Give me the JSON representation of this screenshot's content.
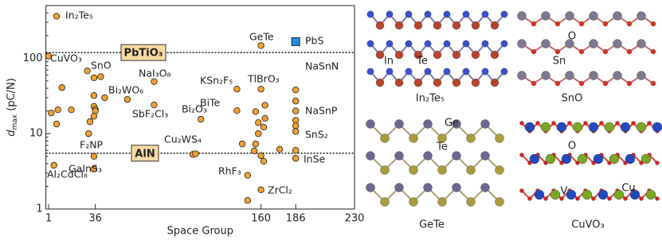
{
  "chart_data": {
    "type": "scatter",
    "xlabel": "Space Group",
    "ylabel": {
      "symbol": "d",
      "subscript": "max",
      "unit": " (pC/N)"
    },
    "xlim": [
      -1,
      230
    ],
    "ylim": [
      1,
      500
    ],
    "log_y": true,
    "xticks": [
      1,
      36,
      160,
      186,
      230
    ],
    "yticks": [
      1,
      10,
      100
    ],
    "series": [
      {
        "color": "#f0a030",
        "marker": "circle",
        "x": [
          7,
          1,
          3,
          8,
          7,
          11,
          18,
          5,
          30,
          35,
          40,
          35,
          35,
          36,
          36,
          35,
          32,
          31,
          35,
          35,
          43,
          60,
          80,
          80,
          115,
          109,
          111,
          142,
          142,
          146,
          150,
          150,
          160,
          160,
          156,
          158,
          158,
          156,
          155,
          160,
          162,
          162,
          163,
          160,
          163,
          174,
          186,
          186,
          186,
          186,
          186,
          186,
          186,
          186
        ],
        "values": [
          361,
          107,
          18.8,
          20.7,
          13.4,
          40.8,
          20.7,
          3.8,
          68,
          55,
          57,
          32,
          23,
          21,
          20,
          17,
          14.4,
          10,
          5,
          3.4,
          30,
          28.4,
          24,
          49,
          15.5,
          5.3,
          5.4,
          38.9,
          20.2,
          7.3,
          2.8,
          1.3,
          147,
          38.9,
          19.6,
          14,
          10,
          7.3,
          5.9,
          5.1,
          4.3,
          12.2,
          23.8,
          1.8,
          15.9,
          6.2,
          38,
          27,
          20,
          15,
          12.7,
          10.7,
          6,
          4.7
        ]
      },
      {
        "color": "#1e90e0",
        "marker": "square",
        "x": [
          186
        ],
        "values": [
          166
        ]
      }
    ],
    "hlines": [
      {
        "value": 119,
        "label": "PbTiO₃"
      },
      {
        "value": 5.5,
        "label": "AlN"
      }
    ],
    "annotations": [
      "In₂Te₅",
      "CuVO₃",
      "SnO",
      "NaI₃O₈",
      "Bi₂WO₆",
      "SbF₂Cl₃",
      "Bi₂O₃",
      "KSn₂F₅",
      "BiTe",
      "TlBrO₃",
      "GeTe",
      "PbS",
      "NaSnN",
      "NaSnP",
      "SnS₂",
      "InSe",
      "Cu₂WS₄",
      "F₂NP",
      "GaInS₃",
      "Al₂CdCl₈",
      "RhF₃",
      "ZrCl₂"
    ]
  },
  "structures": [
    {
      "title": "In₂Te₅",
      "atoms": [
        "In",
        "Te"
      ]
    },
    {
      "title": "SnO",
      "atoms": [
        "O",
        "Sn"
      ]
    },
    {
      "title": "GeTe",
      "atoms": [
        "Ge",
        "Te"
      ]
    },
    {
      "title": "CuVO₃",
      "atoms": [
        "O",
        "V",
        "Cu"
      ]
    }
  ]
}
